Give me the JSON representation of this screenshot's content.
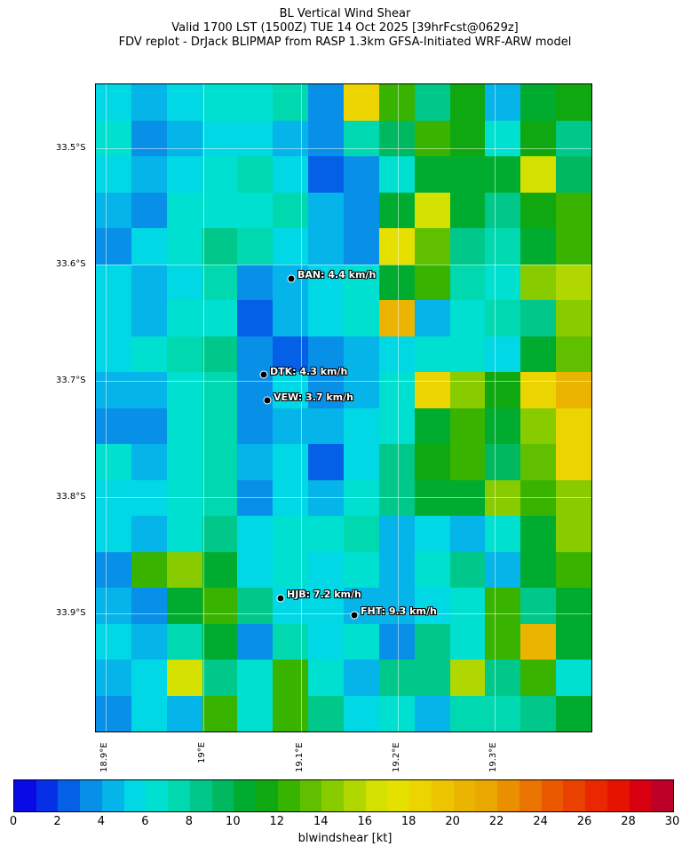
{
  "header": {
    "line1": "BL Vertical Wind Shear",
    "line2": "Valid 1700 LST (1500Z) TUE 14 Oct 2025 [39hrFcst@0629z]",
    "line3": "FDV replot - DrJack BLIPMAP from RASP 1.3km GFSA-Initiated WRF-ARW model"
  },
  "axes": {
    "lat_labels": [
      "33.5°S",
      "33.6°S",
      "33.7°S",
      "33.8°S",
      "33.9°S"
    ],
    "lon_labels": [
      "18.9°E",
      "19°E",
      "19.1°E",
      "19.2°E",
      "19.3°E"
    ]
  },
  "sites": [
    {
      "label": "BAN: 4.4 km/h"
    },
    {
      "label": "DTK: 4.3 km/h"
    },
    {
      "label": "VEW: 3.7 km/h"
    },
    {
      "label": "HJB: 7.2 km/h"
    },
    {
      "label": "FHT: 9.3 km/h"
    }
  ],
  "colorbar": {
    "label": "blwindshear [kt]",
    "ticks": [
      "0",
      "2",
      "4",
      "6",
      "8",
      "10",
      "12",
      "14",
      "16",
      "18",
      "20",
      "22",
      "24",
      "26",
      "28",
      "30"
    ],
    "range": [
      0,
      30
    ],
    "colors": [
      "#0a0ae6",
      "#0630e8",
      "#0560e8",
      "#0890e8",
      "#05b4e8",
      "#00d8e6",
      "#00e0d0",
      "#00d8b0",
      "#00c88a",
      "#00b860",
      "#00ac30",
      "#10a810",
      "#38b400",
      "#60c000",
      "#88cc00",
      "#b0d800",
      "#d4e000",
      "#e6e000",
      "#ecd400",
      "#ecc400",
      "#eab400",
      "#e8a800",
      "#ea9000",
      "#ea7400",
      "#ea5800",
      "#ea4000",
      "#ea2800",
      "#e41400",
      "#d80010",
      "#bc0028"
    ]
  },
  "field_kt": [
    [
      5,
      4,
      5,
      6,
      6,
      7,
      3,
      18,
      12,
      8,
      11,
      4,
      10,
      11
    ],
    [
      6,
      3,
      4,
      5,
      5,
      4,
      3,
      7,
      9,
      12,
      11,
      6,
      11,
      8
    ],
    [
      5,
      4,
      5,
      6,
      7,
      5,
      2,
      3,
      6,
      10,
      10,
      10,
      16,
      9
    ],
    [
      4,
      3,
      6,
      6,
      6,
      7,
      4,
      3,
      10,
      16,
      10,
      8,
      11,
      12
    ],
    [
      3,
      5,
      6,
      8,
      7,
      5,
      4,
      3,
      17,
      13,
      8,
      7,
      10,
      12
    ],
    [
      5,
      4,
      5,
      7,
      3,
      4,
      5,
      6,
      10,
      12,
      7,
      6,
      14,
      15
    ],
    [
      5,
      4,
      6,
      6,
      2,
      4,
      5,
      6,
      20,
      4,
      6,
      7,
      8,
      14
    ],
    [
      5,
      6,
      7,
      8,
      3,
      2,
      3,
      4,
      5,
      6,
      6,
      5,
      10,
      13
    ],
    [
      4,
      4,
      6,
      7,
      3,
      5,
      3,
      4,
      6,
      18,
      14,
      11,
      18,
      20
    ],
    [
      3,
      3,
      6,
      7,
      3,
      4,
      4,
      5,
      6,
      10,
      12,
      10,
      14,
      18
    ],
    [
      6,
      4,
      6,
      7,
      4,
      5,
      2,
      5,
      8,
      11,
      12,
      9,
      13,
      18
    ],
    [
      5,
      5,
      6,
      7,
      3,
      5,
      4,
      6,
      8,
      10,
      10,
      14,
      12,
      14
    ],
    [
      5,
      4,
      6,
      8,
      5,
      6,
      6,
      7,
      4,
      5,
      4,
      6,
      10,
      14
    ],
    [
      3,
      12,
      14,
      10,
      5,
      6,
      5,
      6,
      4,
      6,
      8,
      4,
      10,
      12
    ],
    [
      4,
      3,
      10,
      12,
      8,
      5,
      5,
      4,
      4,
      5,
      6,
      12,
      8,
      10
    ],
    [
      5,
      4,
      7,
      10,
      3,
      7,
      5,
      6,
      3,
      8,
      6,
      12,
      20,
      10
    ],
    [
      4,
      5,
      16,
      8,
      6,
      12,
      6,
      4,
      8,
      8,
      15,
      8,
      12,
      6
    ],
    [
      3,
      5,
      4,
      12,
      6,
      12,
      8,
      5,
      6,
      4,
      7,
      7,
      8,
      10
    ]
  ]
}
